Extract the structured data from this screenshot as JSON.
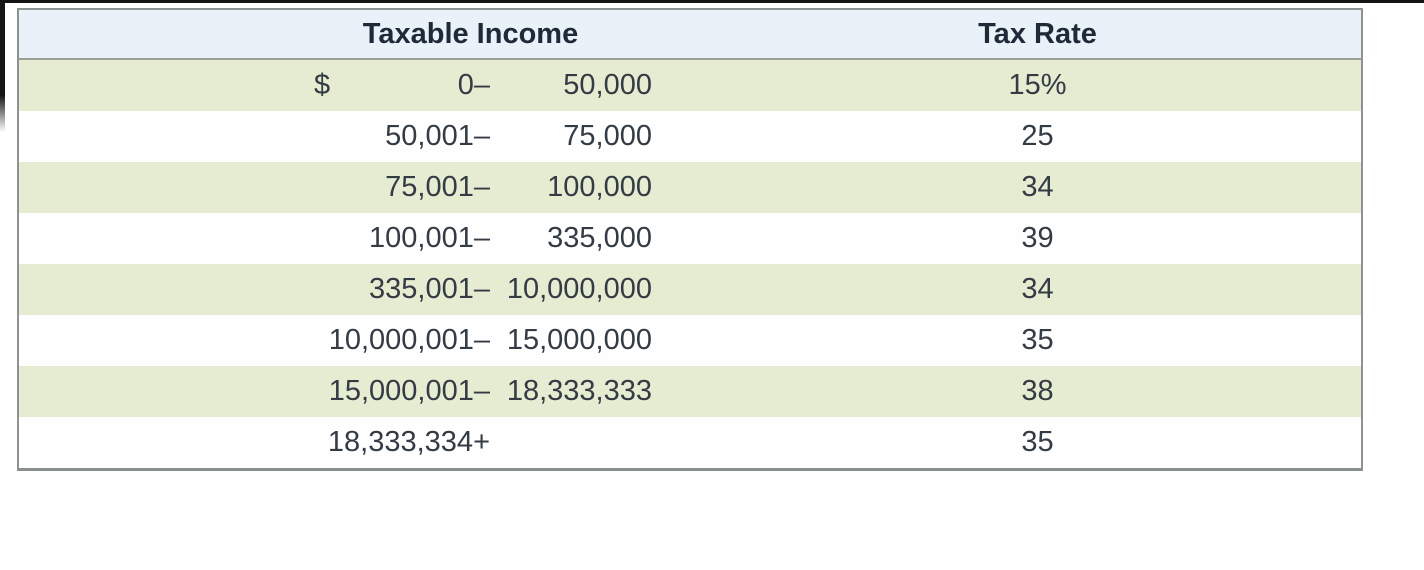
{
  "table": {
    "columns": [
      "Taxable Income",
      "Tax Rate"
    ],
    "rows": [
      {
        "currency": "$",
        "lower": "0–",
        "upper": "50,000",
        "rate": "15%"
      },
      {
        "currency": "",
        "lower": "50,001–",
        "upper": "75,000",
        "rate": "25"
      },
      {
        "currency": "",
        "lower": "75,001–",
        "upper": "100,000",
        "rate": "34"
      },
      {
        "currency": "",
        "lower": "100,001–",
        "upper": "335,000",
        "rate": "39"
      },
      {
        "currency": "",
        "lower": "335,001–",
        "upper": "10,000,000",
        "rate": "34"
      },
      {
        "currency": "",
        "lower": "10,000,001–",
        "upper": "15,000,000",
        "rate": "35"
      },
      {
        "currency": "",
        "lower": "15,000,001–",
        "upper": "18,333,333",
        "rate": "38"
      },
      {
        "currency": "",
        "lower": "18,333,334+",
        "upper": "",
        "rate": "35"
      }
    ],
    "colors": {
      "header_bg": "#e9f1f9",
      "row_alt_bg": "#e6ecd1",
      "row_bg": "#fefefe",
      "outer_border": "#8d9393",
      "header_divider": "#9ba093",
      "header_text": "#1f2937",
      "body_text": "#333b44"
    }
  }
}
